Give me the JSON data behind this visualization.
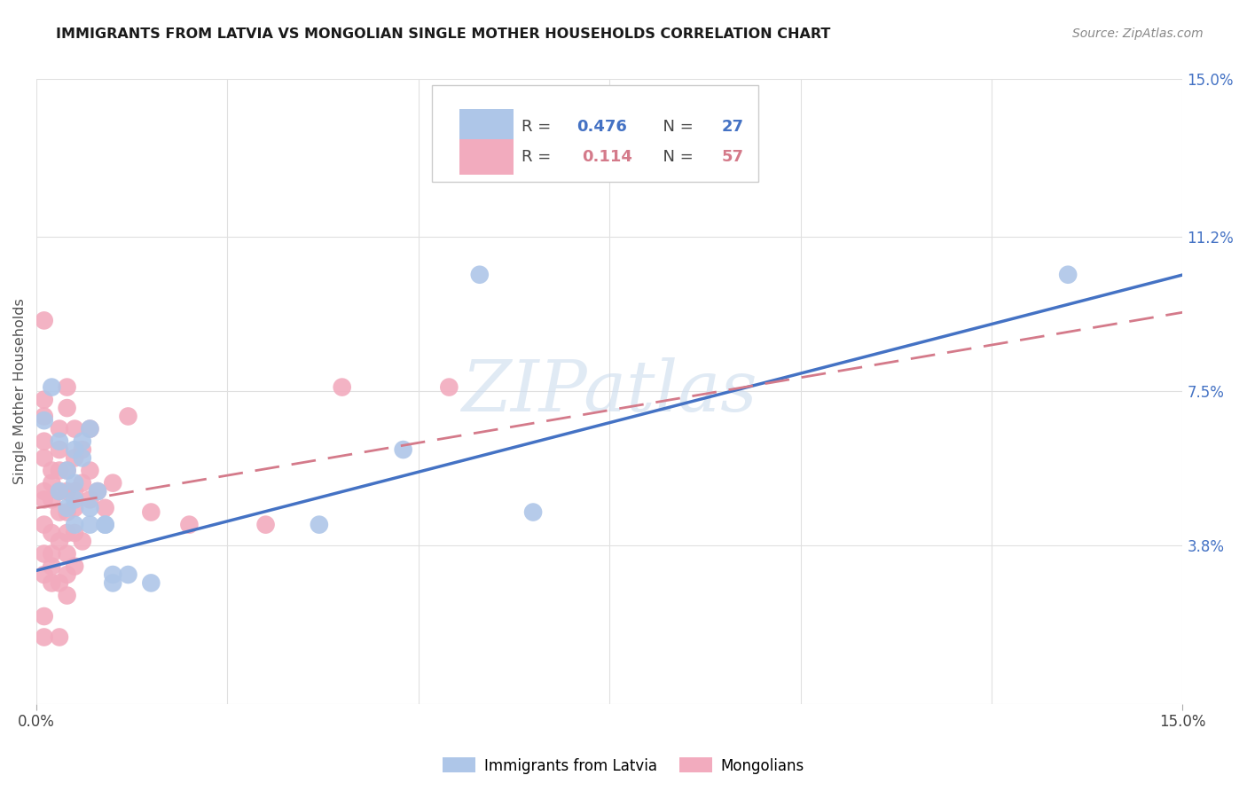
{
  "title": "IMMIGRANTS FROM LATVIA VS MONGOLIAN SINGLE MOTHER HOUSEHOLDS CORRELATION CHART",
  "source": "Source: ZipAtlas.com",
  "ylabel": "Single Mother Households",
  "xlim": [
    0.0,
    0.15
  ],
  "ylim": [
    0.0,
    0.15
  ],
  "ytick_positions": [
    0.0,
    0.038,
    0.075,
    0.112,
    0.15
  ],
  "ytick_labels": [
    "",
    "3.8%",
    "7.5%",
    "11.2%",
    "15.0%"
  ],
  "legend_blue_r": "0.476",
  "legend_blue_n": "27",
  "legend_pink_r": "0.114",
  "legend_pink_n": "57",
  "blue_color": "#aec6e8",
  "pink_color": "#f2abbe",
  "blue_line_color": "#4472c4",
  "pink_line_color": "#d47a8a",
  "blue_scatter": [
    [
      0.001,
      0.068
    ],
    [
      0.002,
      0.076
    ],
    [
      0.003,
      0.063
    ],
    [
      0.003,
      0.051
    ],
    [
      0.004,
      0.056
    ],
    [
      0.004,
      0.047
    ],
    [
      0.005,
      0.061
    ],
    [
      0.005,
      0.053
    ],
    [
      0.005,
      0.049
    ],
    [
      0.005,
      0.043
    ],
    [
      0.006,
      0.063
    ],
    [
      0.006,
      0.059
    ],
    [
      0.007,
      0.066
    ],
    [
      0.007,
      0.047
    ],
    [
      0.007,
      0.043
    ],
    [
      0.008,
      0.051
    ],
    [
      0.009,
      0.043
    ],
    [
      0.009,
      0.043
    ],
    [
      0.01,
      0.031
    ],
    [
      0.01,
      0.029
    ],
    [
      0.012,
      0.031
    ],
    [
      0.015,
      0.029
    ],
    [
      0.037,
      0.043
    ],
    [
      0.048,
      0.061
    ],
    [
      0.065,
      0.046
    ],
    [
      0.135,
      0.103
    ],
    [
      0.058,
      0.103
    ]
  ],
  "pink_scatter": [
    [
      0.001,
      0.092
    ],
    [
      0.001,
      0.051
    ],
    [
      0.001,
      0.059
    ],
    [
      0.001,
      0.063
    ],
    [
      0.001,
      0.069
    ],
    [
      0.001,
      0.073
    ],
    [
      0.001,
      0.049
    ],
    [
      0.001,
      0.043
    ],
    [
      0.001,
      0.036
    ],
    [
      0.001,
      0.031
    ],
    [
      0.001,
      0.021
    ],
    [
      0.001,
      0.016
    ],
    [
      0.002,
      0.056
    ],
    [
      0.002,
      0.053
    ],
    [
      0.002,
      0.049
    ],
    [
      0.002,
      0.041
    ],
    [
      0.002,
      0.036
    ],
    [
      0.002,
      0.033
    ],
    [
      0.002,
      0.029
    ],
    [
      0.003,
      0.066
    ],
    [
      0.003,
      0.061
    ],
    [
      0.003,
      0.056
    ],
    [
      0.003,
      0.051
    ],
    [
      0.003,
      0.046
    ],
    [
      0.003,
      0.039
    ],
    [
      0.003,
      0.029
    ],
    [
      0.003,
      0.016
    ],
    [
      0.004,
      0.076
    ],
    [
      0.004,
      0.071
    ],
    [
      0.004,
      0.056
    ],
    [
      0.004,
      0.051
    ],
    [
      0.004,
      0.046
    ],
    [
      0.004,
      0.041
    ],
    [
      0.004,
      0.036
    ],
    [
      0.004,
      0.031
    ],
    [
      0.004,
      0.026
    ],
    [
      0.005,
      0.066
    ],
    [
      0.005,
      0.059
    ],
    [
      0.005,
      0.051
    ],
    [
      0.005,
      0.047
    ],
    [
      0.005,
      0.041
    ],
    [
      0.005,
      0.033
    ],
    [
      0.006,
      0.061
    ],
    [
      0.006,
      0.053
    ],
    [
      0.006,
      0.039
    ],
    [
      0.007,
      0.066
    ],
    [
      0.007,
      0.056
    ],
    [
      0.007,
      0.049
    ],
    [
      0.008,
      0.051
    ],
    [
      0.009,
      0.047
    ],
    [
      0.01,
      0.053
    ],
    [
      0.012,
      0.069
    ],
    [
      0.015,
      0.046
    ],
    [
      0.02,
      0.043
    ],
    [
      0.03,
      0.043
    ],
    [
      0.04,
      0.076
    ],
    [
      0.054,
      0.076
    ]
  ],
  "blue_intercept": 0.032,
  "blue_slope": 0.473,
  "pink_intercept": 0.047,
  "pink_slope": 0.313,
  "watermark": "ZIPatlas",
  "background_color": "#ffffff",
  "grid_color": "#e0e0e0"
}
